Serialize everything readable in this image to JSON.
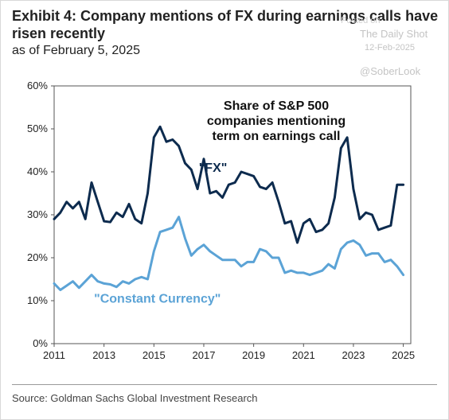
{
  "header": {
    "title": "Exhibit 4: Company mentions of FX during earnings calls have risen recently",
    "subtitle": "as of February 5, 2025"
  },
  "watermark": {
    "posted": "Posted on",
    "publisher": "The Daily Shot",
    "date": "12-Feb-2025",
    "handle": "@SoberLook"
  },
  "source": "Source: Goldman Sachs Global Investment Research",
  "chart_data": {
    "type": "line",
    "title": "",
    "annotation_lines": [
      "Share of S&P 500",
      "companies mentioning",
      "term on earnings call"
    ],
    "xlabel": "",
    "ylabel": "",
    "xlim": [
      2011,
      2025.3
    ],
    "ylim": [
      0,
      60
    ],
    "x_ticks": [
      2011,
      2013,
      2015,
      2017,
      2019,
      2021,
      2023,
      2025
    ],
    "y_ticks": [
      0,
      10,
      20,
      30,
      40,
      50,
      60
    ],
    "y_tick_labels": [
      "0%",
      "10%",
      "20%",
      "30%",
      "40%",
      "50%",
      "60%"
    ],
    "grid": false,
    "legend": "inline labels",
    "series": [
      {
        "name": "\"FX\"",
        "color": "#0d2b4e",
        "x": [
          2011.0,
          2011.25,
          2011.5,
          2011.75,
          2012.0,
          2012.25,
          2012.5,
          2012.75,
          2013.0,
          2013.25,
          2013.5,
          2013.75,
          2014.0,
          2014.25,
          2014.5,
          2014.75,
          2015.0,
          2015.25,
          2015.5,
          2015.75,
          2016.0,
          2016.25,
          2016.5,
          2016.75,
          2017.0,
          2017.25,
          2017.5,
          2017.75,
          2018.0,
          2018.25,
          2018.5,
          2018.75,
          2019.0,
          2019.25,
          2019.5,
          2019.75,
          2020.0,
          2020.25,
          2020.5,
          2020.75,
          2021.0,
          2021.25,
          2021.5,
          2021.75,
          2022.0,
          2022.25,
          2022.5,
          2022.75,
          2023.0,
          2023.25,
          2023.5,
          2023.75,
          2024.0,
          2024.25,
          2024.5,
          2024.75,
          2025.0
        ],
        "values": [
          29,
          30.5,
          33,
          31.5,
          33,
          29,
          37.5,
          33,
          28.5,
          28.3,
          30.5,
          29.5,
          32.5,
          29,
          28,
          35,
          48,
          50.5,
          47,
          47.5,
          46,
          42,
          40.5,
          36,
          43,
          35,
          35.5,
          34,
          37,
          37.5,
          40,
          39.5,
          39,
          36.5,
          36,
          37.5,
          33,
          28,
          28.5,
          23.5,
          28,
          29,
          26,
          26.5,
          28,
          34,
          45.5,
          48,
          36,
          29,
          30.5,
          30,
          26.5,
          27,
          27.5,
          37,
          37
        ],
        "label_x": 2016.8,
        "label_y": 40
      },
      {
        "name": "\"Constant Currency\"",
        "color": "#5ba3d6",
        "x": [
          2011.0,
          2011.25,
          2011.5,
          2011.75,
          2012.0,
          2012.25,
          2012.5,
          2012.75,
          2013.0,
          2013.25,
          2013.5,
          2013.75,
          2014.0,
          2014.25,
          2014.5,
          2014.75,
          2015.0,
          2015.25,
          2015.5,
          2015.75,
          2016.0,
          2016.25,
          2016.5,
          2016.75,
          2017.0,
          2017.25,
          2017.5,
          2017.75,
          2018.0,
          2018.25,
          2018.5,
          2018.75,
          2019.0,
          2019.25,
          2019.5,
          2019.75,
          2020.0,
          2020.25,
          2020.5,
          2020.75,
          2021.0,
          2021.25,
          2021.5,
          2021.75,
          2022.0,
          2022.25,
          2022.5,
          2022.75,
          2023.0,
          2023.25,
          2023.5,
          2023.75,
          2024.0,
          2024.25,
          2024.5,
          2024.75,
          2025.0
        ],
        "values": [
          14,
          12.5,
          13.5,
          14.5,
          13,
          14.5,
          16,
          14.5,
          14,
          13.8,
          13.2,
          14.5,
          14,
          15,
          15.5,
          15,
          21.5,
          26,
          26.5,
          27,
          29.5,
          24.5,
          20.5,
          22,
          23,
          21.5,
          20.5,
          19.5,
          19.5,
          19.5,
          18,
          19,
          19,
          22,
          21.5,
          20,
          20,
          16.5,
          17,
          16.5,
          16.5,
          16,
          16.5,
          17,
          18.5,
          17.5,
          22,
          23.5,
          24,
          23,
          20.5,
          21,
          21,
          19,
          19.5,
          18,
          16
        ],
        "label_x": 2012.6,
        "label_y": 9.5
      }
    ]
  }
}
